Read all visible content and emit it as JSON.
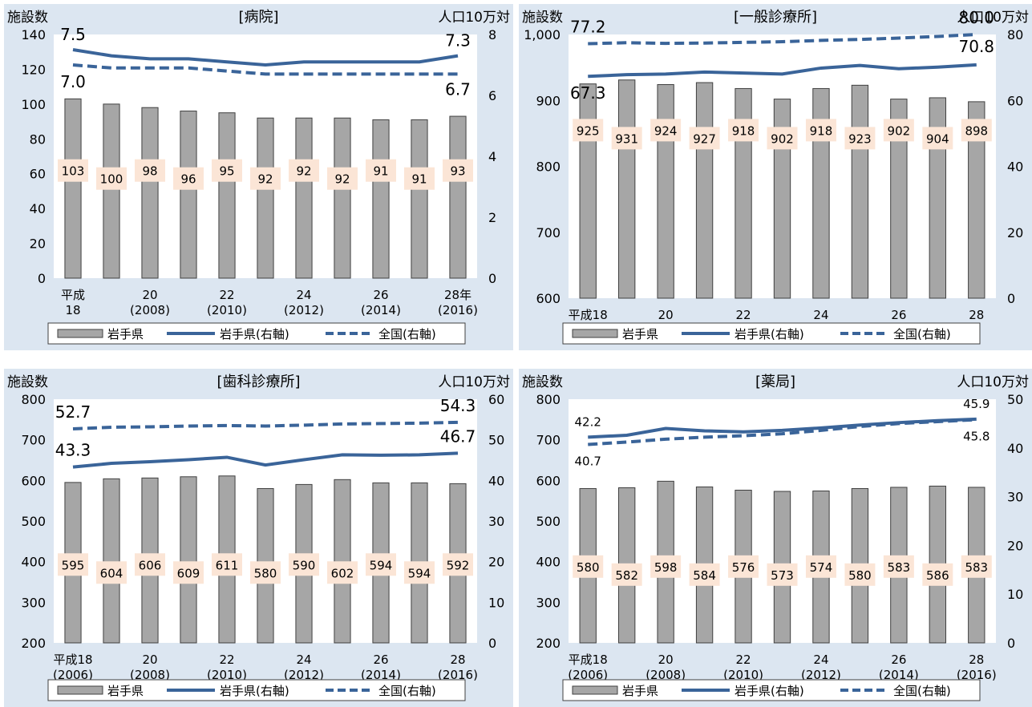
{
  "legend": {
    "bar": "岩手県",
    "line_solid": "岩手県(右軸)",
    "line_dashed": "全国(右軸)"
  },
  "colors": {
    "bar_fill": "#a6a6a6",
    "bar_stroke": "#404040",
    "solid_line": "#3a6499",
    "dashed_line": "#3a6499",
    "label_bg": "#fbe5d6",
    "panel_bg": "#dce6f1",
    "plot_bg": "#ffffff"
  },
  "chart_data": [
    {
      "type": "bar",
      "title": "[病院]",
      "ylabel_left": "施設数",
      "ylabel_right": "人口10万対",
      "categories": [
        "平成\n18",
        "",
        "20\n(2008)",
        "",
        "22\n(2010)",
        "",
        "24\n(2012)",
        "",
        "26\n(2014)",
        "",
        "28年\n(2016)"
      ],
      "ylim_left": [
        0,
        140
      ],
      "yticks_left": [
        "0",
        "20",
        "40",
        "60",
        "80",
        "100",
        "120",
        "140"
      ],
      "ylim_right": [
        0,
        8
      ],
      "yticks_right": [
        "0",
        "2",
        "4",
        "6",
        "8"
      ],
      "series": [
        {
          "name": "岩手県",
          "axis": "left",
          "values": [
            103,
            100,
            98,
            96,
            95,
            92,
            92,
            92,
            91,
            91,
            93
          ]
        },
        {
          "name": "岩手県(右軸)",
          "axis": "right",
          "values": [
            7.5,
            7.3,
            7.2,
            7.2,
            7.1,
            7.0,
            7.1,
            7.1,
            7.1,
            7.1,
            7.3
          ]
        },
        {
          "name": "全国(右軸)",
          "axis": "right",
          "values": [
            7.0,
            6.9,
            6.9,
            6.9,
            6.8,
            6.7,
            6.7,
            6.7,
            6.7,
            6.7,
            6.7
          ]
        }
      ],
      "annotations": {
        "solid_first": "7.5",
        "solid_last": "7.3",
        "dashed_first": "7.0",
        "dashed_last": "6.7"
      },
      "bar_labels": [
        "103",
        "100",
        "98",
        "96",
        "95",
        "92",
        "92",
        "92",
        "91",
        "91",
        "93"
      ]
    },
    {
      "type": "bar",
      "title": "[一般診療所]",
      "ylabel_left": "施設数",
      "ylabel_right": "人口10万対",
      "categories": [
        "平成18",
        "",
        "20",
        "",
        "22",
        "",
        "24",
        "",
        "26",
        "",
        "28"
      ],
      "ylim_left": [
        600,
        1000
      ],
      "yticks_left": [
        "600",
        "700",
        "800",
        "900",
        "1,000"
      ],
      "ylim_right": [
        0,
        80
      ],
      "yticks_right": [
        "0",
        "20",
        "40",
        "60",
        "80"
      ],
      "series": [
        {
          "name": "岩手県",
          "axis": "left",
          "values": [
            925,
            931,
            924,
            927,
            918,
            902,
            918,
            923,
            902,
            904,
            898
          ]
        },
        {
          "name": "岩手県(右軸)",
          "axis": "right",
          "values": [
            67.3,
            67.8,
            68.0,
            68.6,
            68.3,
            68.0,
            69.8,
            70.6,
            69.6,
            70.1,
            70.8
          ]
        },
        {
          "name": "全国(右軸)",
          "axis": "right",
          "values": [
            77.2,
            77.5,
            77.3,
            77.4,
            77.6,
            77.8,
            78.2,
            78.5,
            78.9,
            79.4,
            80.0
          ]
        }
      ],
      "annotations": {
        "solid_first": "67.3",
        "solid_last": "70.8",
        "dashed_first": "77.2",
        "dashed_last": "80.0"
      },
      "bar_labels": [
        "925",
        "931",
        "924",
        "927",
        "918",
        "902",
        "918",
        "923",
        "902",
        "904",
        "898"
      ]
    },
    {
      "type": "bar",
      "title": "[歯科診療所]",
      "ylabel_left": "施設数",
      "ylabel_right": "人口10万対",
      "categories": [
        "平成18\n(2006)",
        "",
        "20\n(2008)",
        "",
        "22\n(2010)",
        "",
        "24\n(2012)",
        "",
        "26\n(2014)",
        "",
        "28\n(2016)"
      ],
      "ylim_left": [
        200,
        800
      ],
      "yticks_left": [
        "200",
        "300",
        "400",
        "500",
        "600",
        "700",
        "800"
      ],
      "ylim_right": [
        0,
        60
      ],
      "yticks_right": [
        "0",
        "10",
        "20",
        "30",
        "40",
        "50",
        "60"
      ],
      "series": [
        {
          "name": "岩手県",
          "axis": "left",
          "values": [
            595,
            604,
            606,
            609,
            611,
            580,
            590,
            602,
            594,
            594,
            592
          ]
        },
        {
          "name": "岩手県(右軸)",
          "axis": "right",
          "values": [
            43.3,
            44.2,
            44.6,
            45.1,
            45.7,
            43.8,
            45.1,
            46.3,
            46.2,
            46.3,
            46.7
          ]
        },
        {
          "name": "全国(右軸)",
          "axis": "right",
          "values": [
            52.7,
            53.1,
            53.2,
            53.4,
            53.5,
            53.4,
            53.6,
            53.9,
            54.0,
            54.1,
            54.3
          ]
        }
      ],
      "annotations": {
        "solid_first": "43.3",
        "solid_last": "46.7",
        "dashed_first": "52.7",
        "dashed_last": "54.3"
      },
      "bar_labels": [
        "595",
        "604",
        "606",
        "609",
        "611",
        "580",
        "590",
        "602",
        "594",
        "594",
        "592"
      ]
    },
    {
      "type": "bar",
      "title": "[薬局]",
      "ylabel_left": "施設数",
      "ylabel_right": "人口10万対",
      "categories": [
        "平成18\n(2006)",
        "",
        "20\n(2008)",
        "",
        "22\n(2010)",
        "",
        "24\n(2012)",
        "",
        "26\n(2014)",
        "",
        "28\n(2016)"
      ],
      "ylim_left": [
        200,
        800
      ],
      "yticks_left": [
        "200",
        "300",
        "400",
        "500",
        "600",
        "700",
        "800"
      ],
      "ylim_right": [
        0,
        50
      ],
      "yticks_right": [
        "0",
        "10",
        "20",
        "30",
        "40",
        "50"
      ],
      "series": [
        {
          "name": "岩手県",
          "axis": "left",
          "values": [
            580,
            582,
            598,
            584,
            576,
            573,
            574,
            580,
            583,
            586,
            583
          ]
        },
        {
          "name": "岩手県(右軸)",
          "axis": "right",
          "values": [
            42.2,
            42.6,
            44.0,
            43.5,
            43.3,
            43.6,
            44.1,
            44.7,
            45.2,
            45.6,
            45.9
          ]
        },
        {
          "name": "全国(右軸)",
          "axis": "right",
          "values": [
            40.7,
            41.2,
            41.8,
            42.2,
            42.5,
            42.9,
            43.6,
            44.4,
            45.0,
            45.4,
            45.8
          ]
        }
      ],
      "annotations": {
        "solid_first": "42.2",
        "solid_last": "45.9",
        "dashed_first": "40.7",
        "dashed_last": "45.8"
      },
      "bar_labels": [
        "580",
        "582",
        "598",
        "584",
        "576",
        "573",
        "574",
        "580",
        "583",
        "586",
        "583"
      ]
    }
  ]
}
